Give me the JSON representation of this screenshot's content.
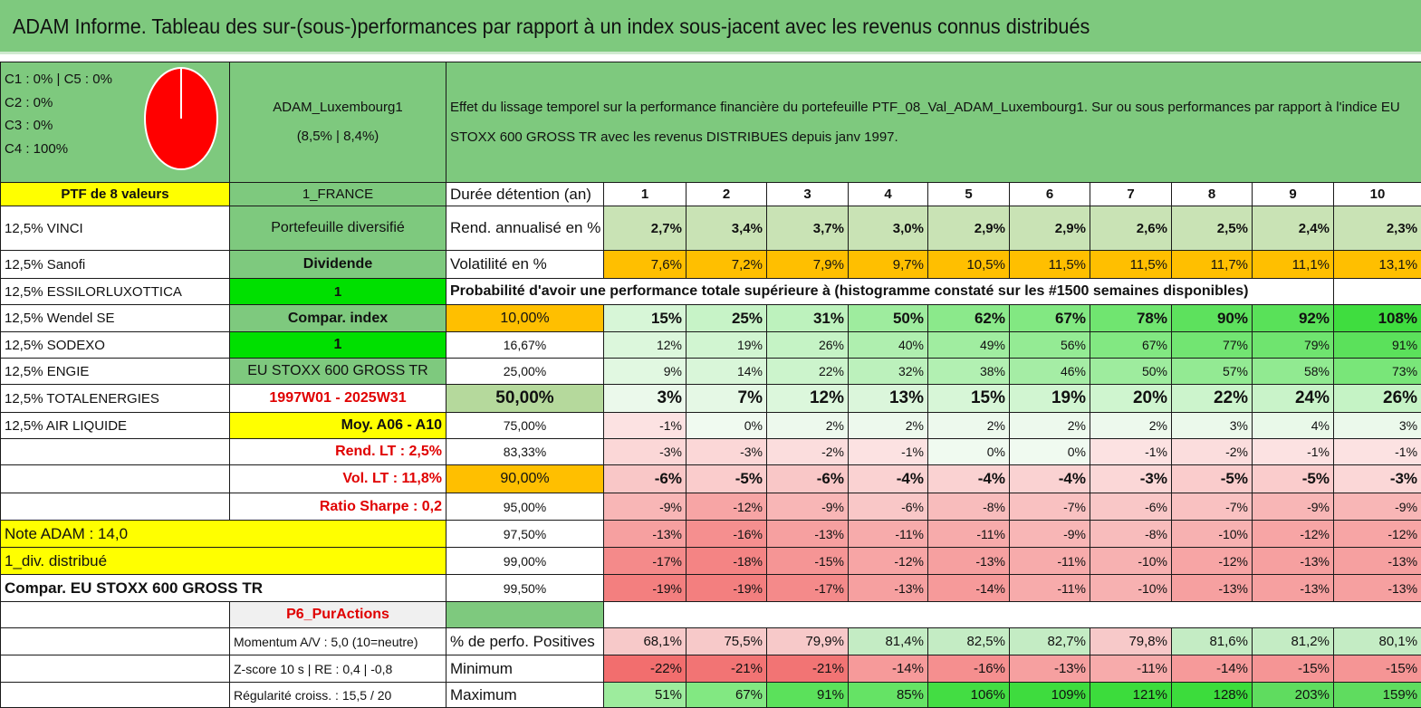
{
  "title": "ADAM Informe. Tableau des sur-(sous-)performances par rapport à un index sous-jacent avec les revenus connus distribués",
  "categories_legend": [
    "C1 : 0% | C5 : 0%",
    "C2 : 0%",
    "C3 : 0%",
    "C4 : 100%"
  ],
  "colors": {
    "pie": "#ff0000",
    "header_green": "#7ec97e",
    "highlight_yellow": "#ffff00",
    "bright_green": "#00e000",
    "orange": "#ffbf00"
  },
  "portfolio": {
    "name": "ADAM_Luxembourg1",
    "rates": "(8,5% | 8,4%)",
    "count_label": "PTF de 8 valeurs",
    "country": "1_FRANCE",
    "type": "Portefeuille diversifié",
    "style": "Dividende",
    "style_value": "1",
    "compar_label": "Compar. index",
    "compar_value": "1",
    "index_name": "EU STOXX 600 GROSS TR",
    "period": "1997W01 - 2025W31",
    "moy": "Moy. A06 - A10",
    "rend_lt": "Rend. LT : 2,5%",
    "vol_lt": "Vol. LT : 11,8%",
    "sharpe": "Ratio Sharpe : 0,2",
    "note": "Note ADAM : 14,0",
    "div": "1_div. distribué",
    "compar_full": "Compar. EU STOXX 600 GROSS TR",
    "product": "P6_PurActions",
    "momentum": "Momentum A/V : 5,0 (10=neutre)",
    "zscore": "Z-score 10 s | RE : 0,4 | -0,8",
    "regularite": "Régularité croiss. : 15,5 / 20"
  },
  "holdings": [
    "12,5% VINCI",
    "12,5% Sanofi",
    "12,5% ESSILORLUXOTTICA",
    "12,5% Wendel SE",
    "12,5% SODEXO",
    "12,5% ENGIE",
    "12,5% TOTALENERGIES",
    "12,5% AIR LIQUIDE"
  ],
  "description": "Effet du lissage temporel sur la performance financière du portefeuille PTF_08_Val_ADAM_Luxembourg1. Sur ou sous performances par rapport à l'indice EU STOXX 600 GROSS TR avec les revenus DISTRIBUES depuis janv 1997.",
  "table": {
    "duration_label": "Durée détention (an)",
    "years": [
      "1",
      "2",
      "3",
      "4",
      "5",
      "6",
      "7",
      "8",
      "9",
      "10"
    ],
    "rend_label": "Rend. annualisé en %",
    "rend": [
      "2,7%",
      "3,4%",
      "3,7%",
      "3,0%",
      "2,9%",
      "2,9%",
      "2,6%",
      "2,5%",
      "2,4%",
      "2,3%"
    ],
    "vol_label": "Volatilité en %",
    "vol": [
      "7,6%",
      "7,2%",
      "7,9%",
      "9,7%",
      "10,5%",
      "11,5%",
      "11,5%",
      "11,7%",
      "11,1%",
      "13,1%"
    ],
    "prob_label": "Probabilité d'avoir une performance totale supérieure à (histogramme constaté sur les #1500 semaines disponibles)",
    "quantiles": [
      {
        "q": "10,00%",
        "v": [
          "15%",
          "25%",
          "31%",
          "50%",
          "62%",
          "67%",
          "78%",
          "90%",
          "92%",
          "108%"
        ]
      },
      {
        "q": "16,67%",
        "v": [
          "12%",
          "19%",
          "26%",
          "40%",
          "49%",
          "56%",
          "67%",
          "77%",
          "79%",
          "91%"
        ]
      },
      {
        "q": "25,00%",
        "v": [
          "9%",
          "14%",
          "22%",
          "32%",
          "38%",
          "46%",
          "50%",
          "57%",
          "58%",
          "73%"
        ]
      },
      {
        "q": "50,00%",
        "v": [
          "3%",
          "7%",
          "12%",
          "13%",
          "15%",
          "19%",
          "20%",
          "22%",
          "24%",
          "26%"
        ]
      },
      {
        "q": "75,00%",
        "v": [
          "-1%",
          "0%",
          "2%",
          "2%",
          "2%",
          "2%",
          "2%",
          "3%",
          "4%",
          "3%"
        ]
      },
      {
        "q": "83,33%",
        "v": [
          "-3%",
          "-3%",
          "-2%",
          "-1%",
          "0%",
          "0%",
          "-1%",
          "-2%",
          "-1%",
          "-1%"
        ]
      },
      {
        "q": "90,00%",
        "v": [
          "-6%",
          "-5%",
          "-6%",
          "-4%",
          "-4%",
          "-4%",
          "-3%",
          "-5%",
          "-5%",
          "-3%"
        ]
      },
      {
        "q": "95,00%",
        "v": [
          "-9%",
          "-12%",
          "-9%",
          "-6%",
          "-8%",
          "-7%",
          "-6%",
          "-7%",
          "-9%",
          "-9%"
        ]
      },
      {
        "q": "97,50%",
        "v": [
          "-13%",
          "-16%",
          "-13%",
          "-11%",
          "-11%",
          "-9%",
          "-8%",
          "-10%",
          "-12%",
          "-12%"
        ]
      },
      {
        "q": "99,00%",
        "v": [
          "-17%",
          "-18%",
          "-15%",
          "-12%",
          "-13%",
          "-11%",
          "-10%",
          "-12%",
          "-13%",
          "-13%"
        ]
      },
      {
        "q": "99,50%",
        "v": [
          "-19%",
          "-19%",
          "-17%",
          "-13%",
          "-14%",
          "-11%",
          "-10%",
          "-13%",
          "-13%",
          "-13%"
        ]
      }
    ],
    "pos_label": "% de perfo. Positives",
    "pos": [
      "68,1%",
      "75,5%",
      "79,9%",
      "81,4%",
      "82,5%",
      "82,7%",
      "79,8%",
      "81,6%",
      "81,2%",
      "80,1%"
    ],
    "min_label": "Minimum",
    "min": [
      "-22%",
      "-21%",
      "-21%",
      "-14%",
      "-16%",
      "-13%",
      "-11%",
      "-14%",
      "-15%",
      "-15%"
    ],
    "max_label": "Maximum",
    "max": [
      "51%",
      "67%",
      "91%",
      "85%",
      "106%",
      "109%",
      "121%",
      "128%",
      "203%",
      "159%"
    ]
  }
}
